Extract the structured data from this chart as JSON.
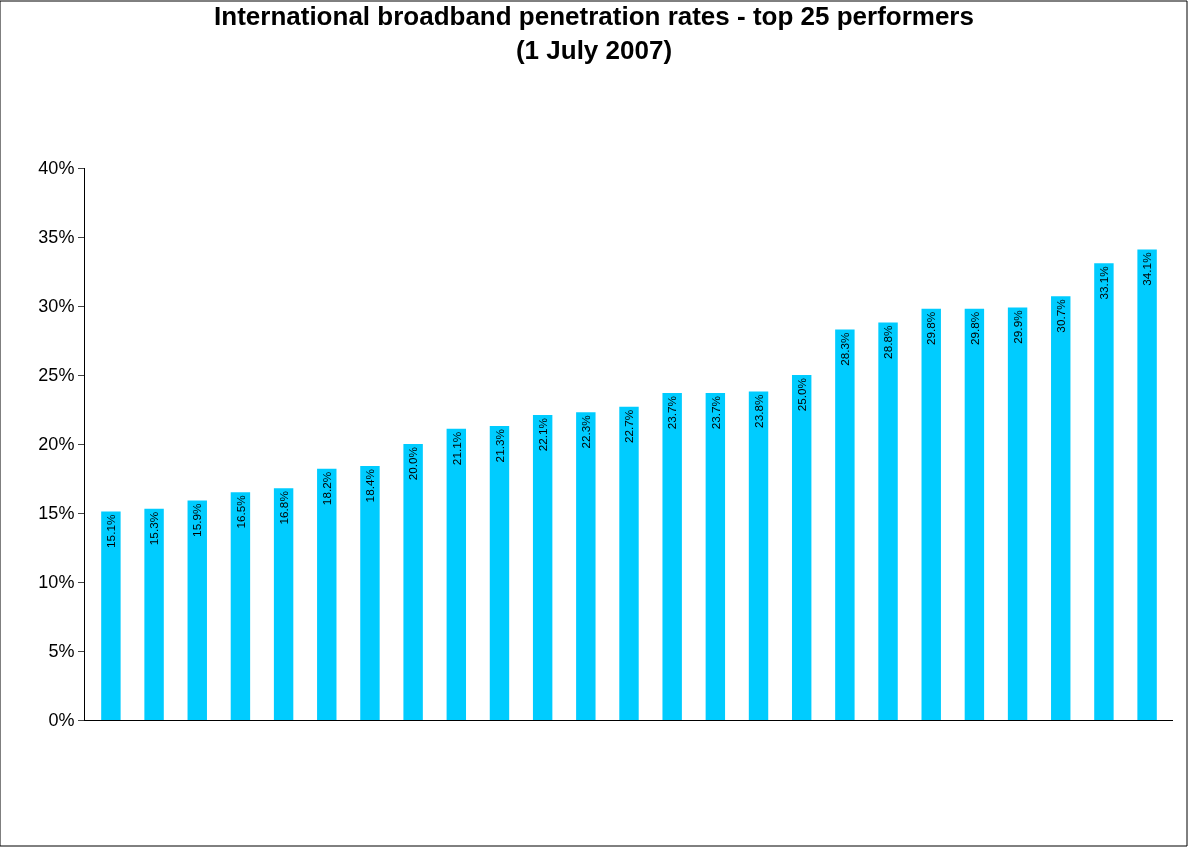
{
  "chart_data": {
    "type": "bar",
    "title": "International broadband penetration rates - top 25 performers\n(1 July 2007)",
    "categories": [
      null,
      null,
      null,
      null,
      null,
      null,
      null,
      null,
      null,
      null,
      null,
      null,
      null,
      null,
      null,
      null,
      null,
      null,
      null,
      null,
      null,
      null,
      null,
      null,
      null
    ],
    "values": [
      15.1,
      15.3,
      15.9,
      16.5,
      16.8,
      18.2,
      18.4,
      20.0,
      21.1,
      21.3,
      22.1,
      22.3,
      22.7,
      23.7,
      23.7,
      23.8,
      25.0,
      28.3,
      28.8,
      29.8,
      29.8,
      29.9,
      30.7,
      33.1,
      34.1
    ],
    "value_labels": [
      "15.1%",
      "15.3%",
      "15.9%",
      "16.5%",
      "16.8%",
      "18.2%",
      "18.4%",
      "20.0%",
      "21.1%",
      "21.3%",
      "22.1%",
      "22.3%",
      "22.7%",
      "23.7%",
      "23.7%",
      "23.8%",
      "25.0%",
      "28.3%",
      "28.8%",
      "29.8%",
      "29.8%",
      "29.9%",
      "30.7%",
      "33.1%",
      "34.1%"
    ],
    "color": "#00ccff",
    "ylim": [
      0,
      40
    ],
    "yticks": [
      {
        "value": 0,
        "label": "0%"
      },
      {
        "value": 5,
        "label": "5%"
      },
      {
        "value": 10,
        "label": "10%"
      },
      {
        "value": 15,
        "label": "15%"
      },
      {
        "value": 20,
        "label": "20%"
      },
      {
        "value": 25,
        "label": "25%"
      },
      {
        "value": 30,
        "label": "30%"
      },
      {
        "value": 35,
        "label": "35%"
      },
      {
        "value": 40,
        "label": "40%"
      }
    ],
    "tick_labels": "y"
  }
}
